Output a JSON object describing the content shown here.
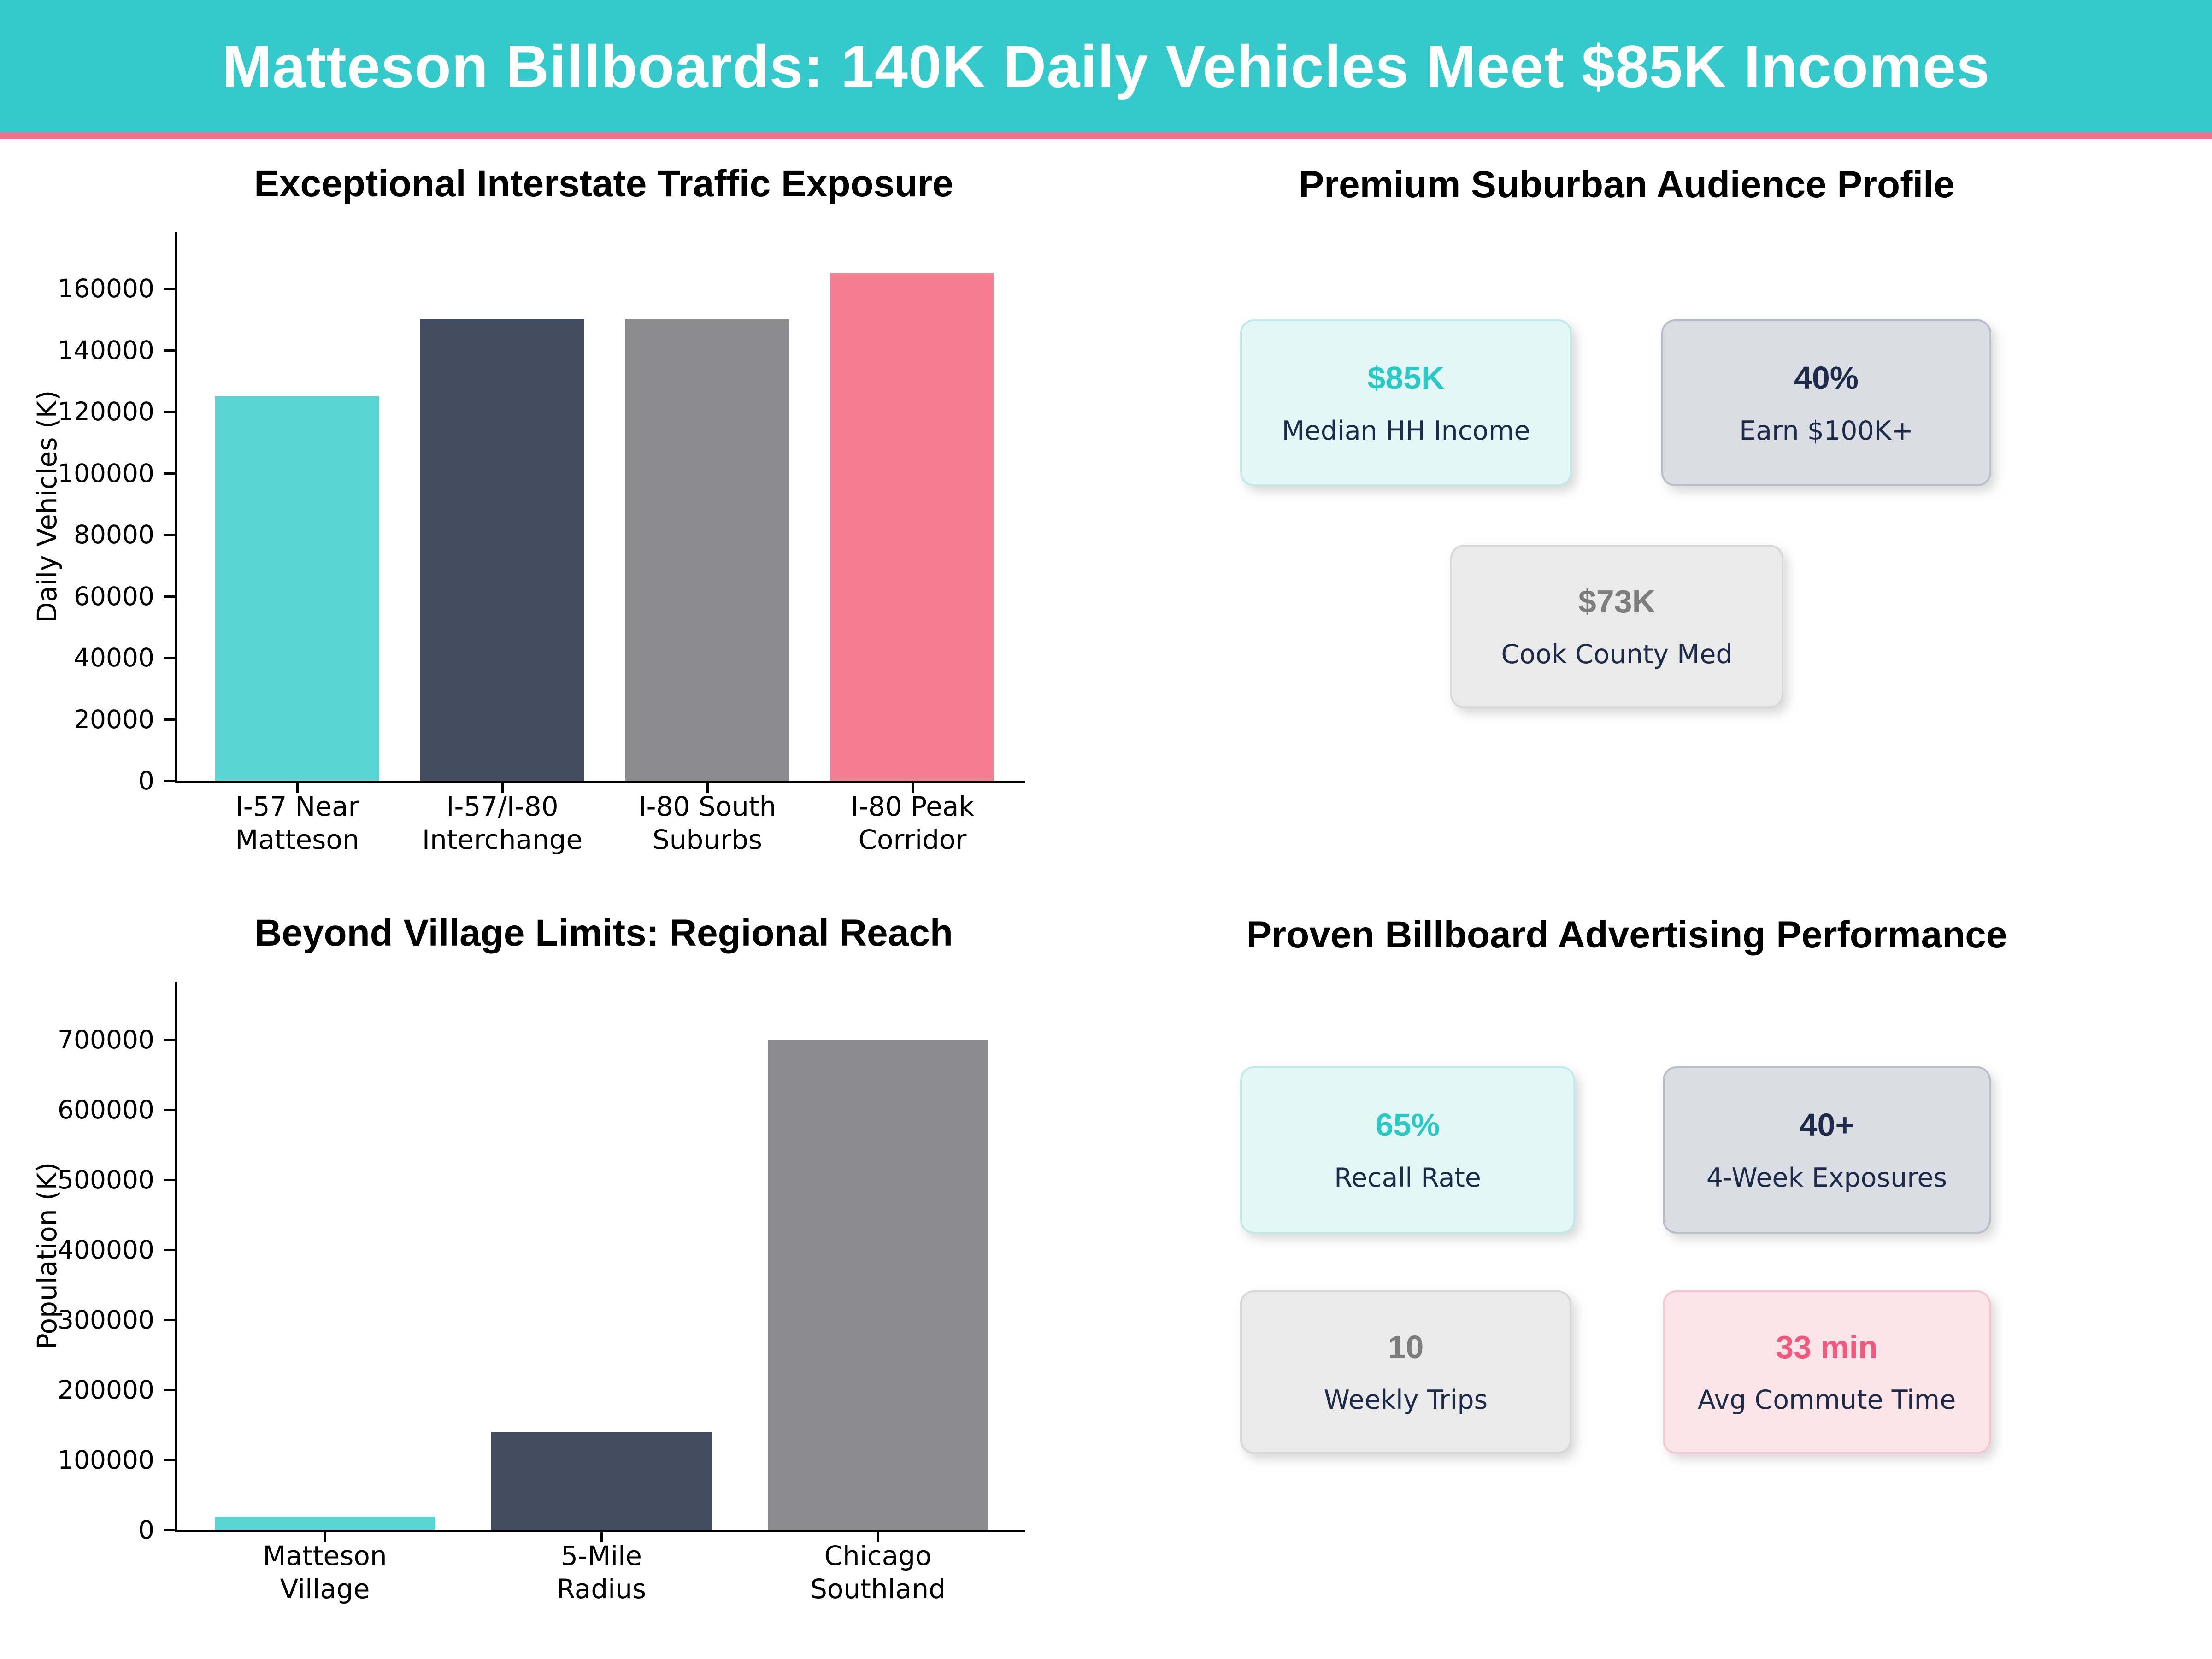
{
  "header": {
    "title": "Matteson Billboards: 140K Daily Vehicles Meet $85K Incomes",
    "bg_color": "#35C9CC",
    "accent_color": "#F0708C"
  },
  "chart_data": [
    {
      "type": "bar",
      "title": "Exceptional Interstate Traffic Exposure",
      "ylabel": "Daily Vehicles (K)",
      "categories": [
        "I-57 Near\nMatteson",
        "I-57/I-80\nInterchange",
        "I-80 South\nSuburbs",
        "I-80 Peak\nCorridor"
      ],
      "values": [
        125000,
        150000,
        150000,
        165000
      ],
      "bar_labels": [
        "125K",
        "150K",
        "150K",
        "165K"
      ],
      "bar_colors": [
        "#5AD5D3",
        "#434B60",
        "#8C8C8E",
        "#F47D92"
      ],
      "yticks": [
        0,
        20000,
        40000,
        60000,
        80000,
        100000,
        120000,
        140000,
        160000
      ],
      "ylim": [
        0,
        178000
      ],
      "grid": false,
      "legend": "none"
    },
    {
      "type": "bar",
      "title": "Beyond Village Limits: Regional Reach",
      "ylabel": "Population (K)",
      "categories": [
        "Matteson\nVillage",
        "5-Mile\nRadius",
        "Chicago\nSouthland"
      ],
      "values": [
        19000,
        140000,
        700000
      ],
      "bar_labels": [
        "19K",
        "140K",
        "700K"
      ],
      "bar_colors": [
        "#5AD5D3",
        "#434B60",
        "#8C8C8E"
      ],
      "yticks": [
        0,
        100000,
        200000,
        300000,
        400000,
        500000,
        600000,
        700000
      ],
      "ylim": [
        0,
        783000
      ],
      "grid": false,
      "legend": "none"
    }
  ],
  "panels": [
    {
      "title": "Premium Suburban Audience Profile",
      "cards": [
        {
          "value": "$85K",
          "label": "Median HH Income",
          "variant": "teal"
        },
        {
          "value": "40%",
          "label": "Earn $100K+",
          "variant": "blue"
        },
        {
          "value": "$73K",
          "label": "Cook County Med",
          "variant": "gray"
        }
      ]
    },
    {
      "title": "Proven Billboard Advertising Performance",
      "cards": [
        {
          "value": "65%",
          "label": "Recall Rate",
          "variant": "teal"
        },
        {
          "value": "40+",
          "label": "4-Week Exposures",
          "variant": "blue"
        },
        {
          "value": "10",
          "label": "Weekly Trips",
          "variant": "gray"
        },
        {
          "value": "33 min",
          "label": "Avg Commute Time",
          "variant": "pink"
        }
      ]
    }
  ],
  "theme": {
    "variants": {
      "teal": {
        "bg": "#E3F7F6",
        "border": "#BFEAE8",
        "value_color": "#2BC8C6"
      },
      "blue": {
        "bg": "#DBDDE4",
        "border": "#B9BCC9",
        "value_color": "#1E2A4A"
      },
      "gray": {
        "bg": "#EAEAEA",
        "border": "#D8D8D8",
        "value_color": "#7D7D7D"
      },
      "pink": {
        "bg": "#FCE5E9",
        "border": "#F6C7D2",
        "value_color": "#EE5B7E"
      }
    },
    "label_color": "#1E2A4A",
    "annotation_text_color": "#000000",
    "axis_color": "#000000"
  }
}
